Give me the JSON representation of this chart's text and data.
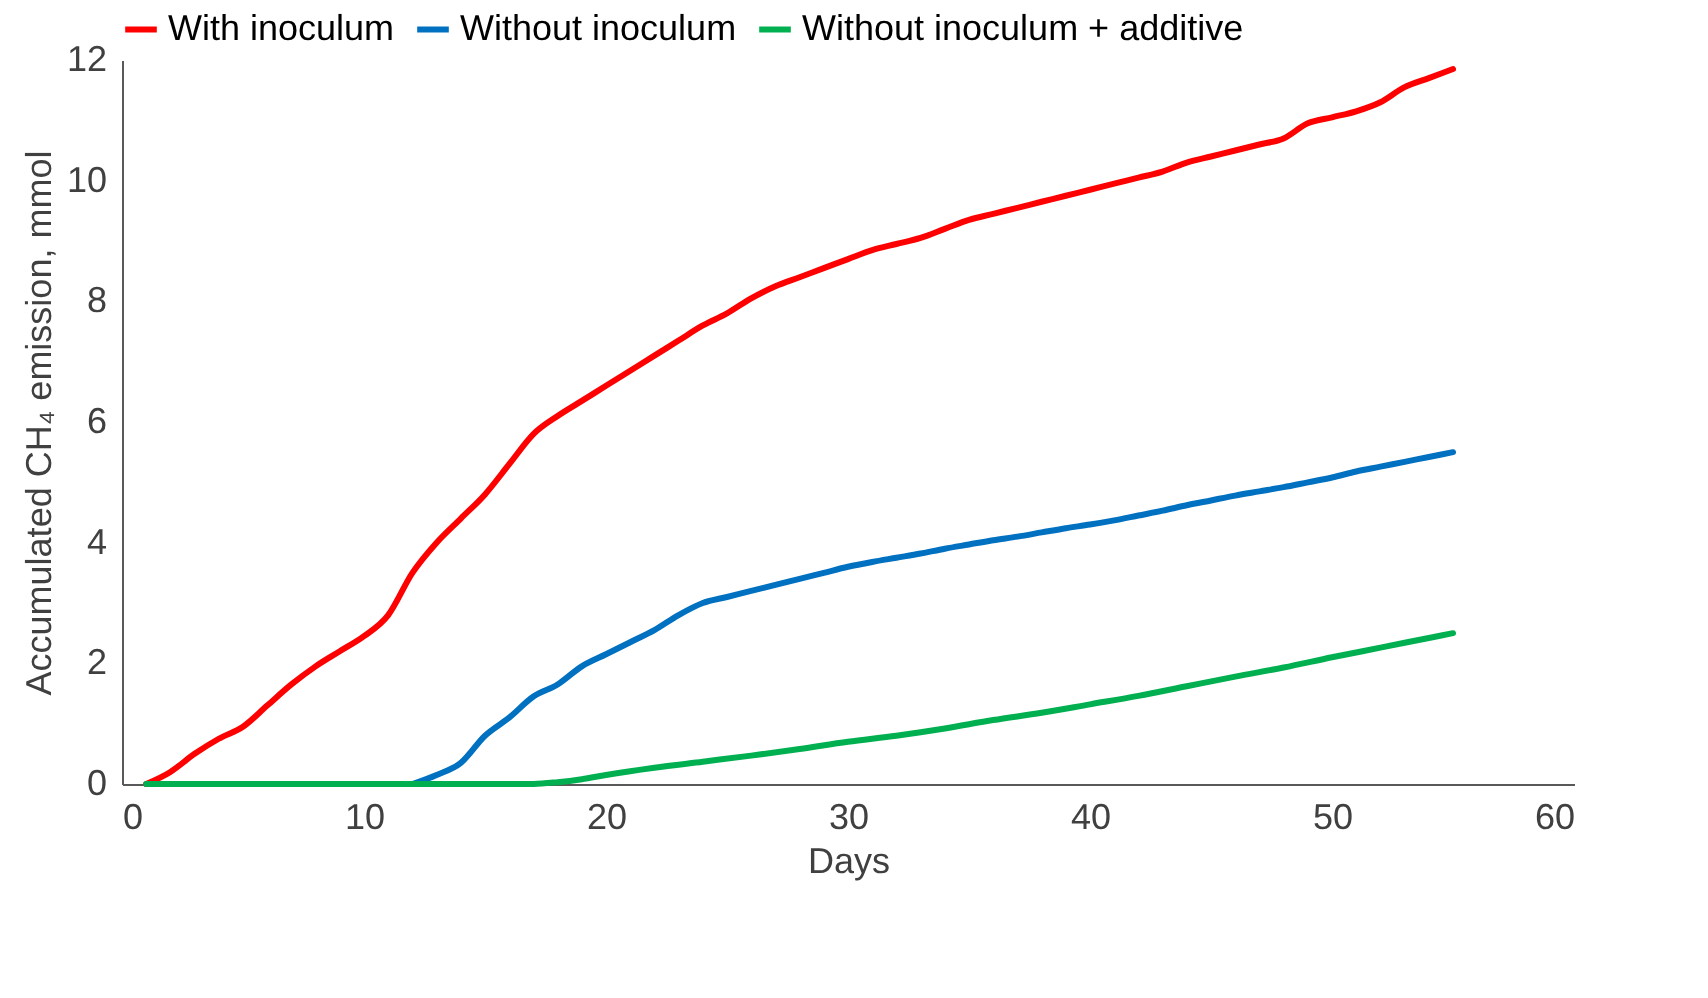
{
  "chart_data": {
    "type": "line",
    "xlabel": "Days",
    "ylabel": "Accumulated CH₄ emission, mmol",
    "xlim": [
      0,
      60
    ],
    "xticks": [
      0,
      10,
      20,
      30,
      40,
      50,
      60
    ],
    "ylim": [
      0,
      12
    ],
    "yticks": [
      0,
      2,
      4,
      6,
      8,
      10,
      12
    ],
    "grid": false,
    "legend": "top",
    "marker": "none",
    "line_style": "solid",
    "series": [
      {
        "name": "With inoculum",
        "color": "#ff0000",
        "x": [
          1,
          2,
          3,
          4,
          5,
          6,
          7,
          8,
          9,
          10,
          11,
          12,
          13,
          14,
          15,
          16,
          17,
          18,
          19,
          20,
          21,
          22,
          23,
          24,
          25,
          26,
          27,
          28,
          29,
          30,
          31,
          32,
          33,
          34,
          35,
          36,
          37,
          38,
          39,
          40,
          41,
          42,
          43,
          44,
          45,
          46,
          47,
          48,
          49,
          50,
          51,
          52,
          53,
          54,
          55
        ],
        "values": [
          0,
          0.2,
          0.5,
          0.75,
          0.95,
          1.3,
          1.65,
          1.95,
          2.2,
          2.45,
          2.8,
          3.5,
          4.0,
          4.4,
          4.8,
          5.3,
          5.8,
          6.1,
          6.35,
          6.6,
          6.85,
          7.1,
          7.35,
          7.6,
          7.8,
          8.05,
          8.25,
          8.4,
          8.55,
          8.7,
          8.85,
          8.95,
          9.05,
          9.2,
          9.35,
          9.45,
          9.55,
          9.65,
          9.75,
          9.85,
          9.95,
          10.05,
          10.15,
          10.3,
          10.4,
          10.5,
          10.6,
          10.7,
          10.95,
          11.05,
          11.15,
          11.3,
          11.55,
          11.7,
          11.85
        ]
      },
      {
        "name": "Without inoculum",
        "color": "#0070c0",
        "x": [
          12,
          13,
          14,
          15,
          16,
          17,
          18,
          19,
          20,
          21,
          22,
          23,
          24,
          25,
          26,
          27,
          28,
          29,
          30,
          31,
          32,
          33,
          34,
          35,
          36,
          37,
          38,
          39,
          40,
          41,
          42,
          43,
          44,
          45,
          46,
          47,
          48,
          49,
          50,
          51,
          52,
          53,
          54,
          55
        ],
        "values": [
          0,
          0.15,
          0.35,
          0.8,
          1.1,
          1.45,
          1.65,
          1.95,
          2.15,
          2.35,
          2.55,
          2.8,
          3.0,
          3.1,
          3.2,
          3.3,
          3.4,
          3.5,
          3.6,
          3.68,
          3.75,
          3.82,
          3.9,
          3.97,
          4.04,
          4.1,
          4.17,
          4.24,
          4.3,
          4.37,
          4.45,
          4.53,
          4.62,
          4.7,
          4.78,
          4.85,
          4.92,
          5.0,
          5.08,
          5.18,
          5.26,
          5.34,
          5.42,
          5.5
        ]
      },
      {
        "name": "Without inoculum + additive",
        "color": "#00b050",
        "x": [
          1,
          5,
          10,
          15,
          17,
          18,
          19,
          20,
          22,
          24,
          26,
          28,
          30,
          32,
          34,
          36,
          38,
          40,
          42,
          44,
          46,
          48,
          50,
          52,
          54,
          55
        ],
        "values": [
          0,
          0,
          0,
          0,
          0,
          0.03,
          0.08,
          0.15,
          0.27,
          0.37,
          0.47,
          0.58,
          0.7,
          0.8,
          0.92,
          1.06,
          1.18,
          1.32,
          1.46,
          1.62,
          1.78,
          1.93,
          2.1,
          2.26,
          2.42,
          2.5
        ]
      }
    ]
  }
}
